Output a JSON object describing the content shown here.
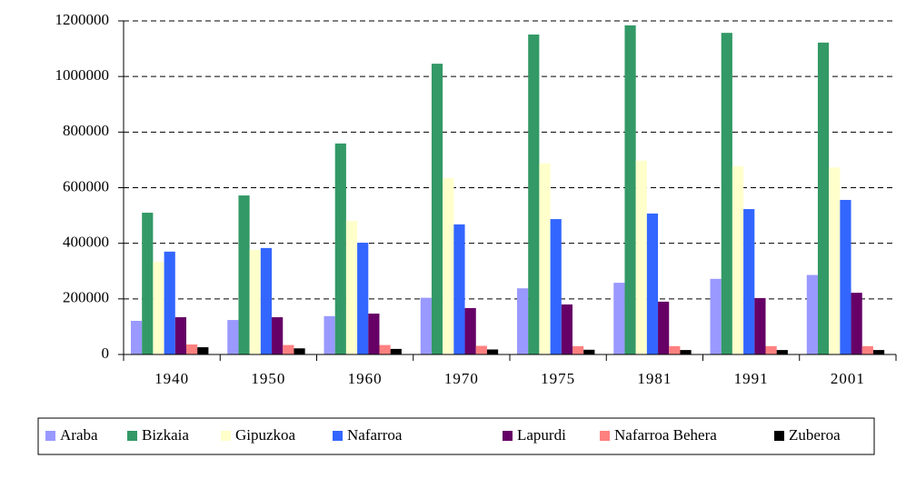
{
  "chart_data": {
    "type": "bar",
    "categories": [
      "1940",
      "1950",
      "1960",
      "1970",
      "1975",
      "1981",
      "1991",
      "2001"
    ],
    "series": [
      {
        "name": "Araba",
        "color": "#9999ff",
        "values": [
          121000,
          124000,
          138000,
          204000,
          238000,
          258000,
          272000,
          286000
        ]
      },
      {
        "name": "Bizkaia",
        "color": "#339966",
        "values": [
          510000,
          572000,
          759000,
          1046000,
          1151000,
          1184000,
          1157000,
          1122000
        ]
      },
      {
        "name": "Gipuzkoa",
        "color": "#ffffcc",
        "values": [
          333000,
          376000,
          481000,
          634000,
          687000,
          697000,
          677000,
          673000
        ]
      },
      {
        "name": "Nafarroa",
        "color": "#3366ff",
        "values": [
          370000,
          383000,
          402000,
          468000,
          487000,
          507000,
          523000,
          556000
        ]
      },
      {
        "name": "Lapurdi",
        "color": "#660066",
        "values": [
          134000,
          134000,
          147000,
          167000,
          180000,
          190000,
          203000,
          222000
        ]
      },
      {
        "name": "Nafarroa Behera",
        "color": "#ff8080",
        "values": [
          36000,
          34000,
          34000,
          31000,
          30000,
          30000,
          30000,
          30000
        ]
      },
      {
        "name": "Zuberoa",
        "color": "#000000",
        "values": [
          26000,
          22000,
          20000,
          18000,
          17000,
          16000,
          16000,
          16000
        ]
      }
    ],
    "ylim": [
      0,
      1200000
    ],
    "yticks": [
      0,
      200000,
      400000,
      600000,
      800000,
      1000000,
      1200000
    ],
    "grid": true,
    "legend": "bottom"
  }
}
